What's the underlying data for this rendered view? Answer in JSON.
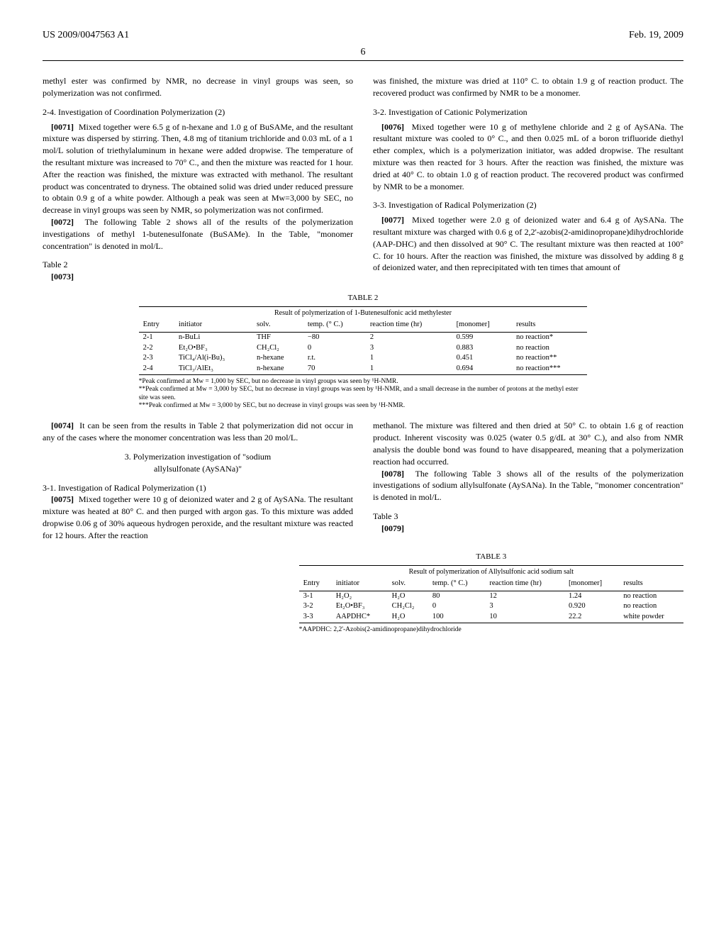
{
  "header": {
    "patent_no": "US 2009/0047563 A1",
    "date": "Feb. 19, 2009",
    "page": "6"
  },
  "col1": {
    "intro": "methyl ester was confirmed by NMR, no decrease in vinyl groups was seen, so polymerization was not confirmed.",
    "s24_head": "2-4. Investigation of Coordination Polymerization (2)",
    "p0071_num": "[0071]",
    "p0071": "Mixed together were 6.5 g of n-hexane and 1.0 g of BuSAMe, and the resultant mixture was dispersed by stirring. Then, 4.8 mg of titanium trichloride and 0.03 mL of a 1 mol/L solution of triethylaluminum in hexane were added dropwise. The temperature of the resultant mixture was increased to 70° C., and then the mixture was reacted for 1 hour. After the reaction was finished, the mixture was extracted with methanol. The resultant product was concentrated to dryness. The obtained solid was dried under reduced pressure to obtain 0.9 g of a white powder. Although a peak was seen at Mw=3,000 by SEC, no decrease in vinyl groups was seen by NMR, so polymerization was not confirmed.",
    "p0072_num": "[0072]",
    "p0072": "The following Table 2 shows all of the results of the polymerization investigations of methyl 1-butenesulfonate (BuSAMe). In the Table, \"monomer concentration\" is denoted in mol/L.",
    "t2_label": "Table 2",
    "p0073_num": "[0073]",
    "p0074_num": "[0074]",
    "p0074": "It can be seen from the results in Table 2 that polymerization did not occur in any of the cases where the monomer concentration was less than 20 mol/L.",
    "s3_head1": "3. Polymerization investigation of \"sodium",
    "s3_head2": "allylsulfonate (AySANa)\"",
    "s31_head": "3-1. Investigation of Radical Polymerization (1)",
    "p0075_num": "[0075]",
    "p0075": "Mixed together were 10 g of deionized water and 2 g of AySANa. The resultant mixture was heated at 80° C. and then purged with argon gas. To this mixture was added dropwise 0.06 g of 30% aqueous hydrogen peroxide, and the resultant mixture was reacted for 12 hours. After the reaction"
  },
  "col2": {
    "intro": "was finished, the mixture was dried at 110° C. to obtain 1.9 g of reaction product. The recovered product was confirmed by NMR to be a monomer.",
    "s32_head": "3-2. Investigation of Cationic Polymerization",
    "p0076_num": "[0076]",
    "p0076": "Mixed together were 10 g of methylene chloride and 2 g of AySANa. The resultant mixture was cooled to 0° C., and then 0.025 mL of a boron trifluoride diethyl ether complex, which is a polymerization initiator, was added dropwise. The resultant mixture was then reacted for 3 hours. After the reaction was finished, the mixture was dried at 40° C. to obtain 1.0 g of reaction product. The recovered product was confirmed by NMR to be a monomer.",
    "s33_head": "3-3. Investigation of Radical Polymerization (2)",
    "p0077_num": "[0077]",
    "p0077": "Mixed together were 2.0 g of deionized water and 6.4 g of AySANa. The resultant mixture was charged with 0.6 g of 2,2'-azobis(2-amidinopropane)dihydrochloride (AAP-DHC) and then dissolved at 90° C. The resultant mixture was then reacted at 100° C. for 10 hours. After the reaction was finished, the mixture was dissolved by adding 8 g of deionized water, and then reprecipitated with ten times that amount of",
    "p_cont": "methanol. The mixture was filtered and then dried at 50° C. to obtain 1.6 g of reaction product. Inherent viscosity was 0.025 (water 0.5 g/dL at 30° C.), and also from NMR analysis the double bond was found to have disappeared, meaning that a polymerization reaction had occurred.",
    "p0078_num": "[0078]",
    "p0078": "The following Table 3 shows all of the results of the polymerization investigations of sodium allylsulfonate (AySANa). In the Table, \"monomer concentration\" is denoted in mol/L.",
    "t3_label": "Table 3",
    "p0079_num": "[0079]"
  },
  "table2": {
    "caption": "TABLE 2",
    "subtitle": "Result of polymerization of 1-Butenesulfonic acid methylester",
    "headers": [
      "Entry",
      "initiator",
      "solv.",
      "temp. (° C.)",
      "reaction time (hr)",
      "[monomer]",
      "results"
    ],
    "rows": [
      [
        "2-1",
        "n-BuLi",
        "THF",
        "−80",
        "2",
        "0.599",
        "no reaction*"
      ],
      [
        "2-2",
        "Et₂O•BF₃",
        "CH₂Cl₂",
        "0",
        "3",
        "0.883",
        "no reaction"
      ],
      [
        "2-3",
        "TiCl₄/Al(i-Bu)₃",
        "n-hexane",
        "r.t.",
        "1",
        "0.451",
        "no reaction**"
      ],
      [
        "2-4",
        "TiCl₃/AlEt₃",
        "n-hexane",
        "70",
        "1",
        "0.694",
        "no reaction***"
      ]
    ],
    "fn1": "*Peak confirmed at Mw = 1,000 by SEC, but no decrease in vinyl groups was seen by ¹H-NMR.",
    "fn2": "**Peak confirmed at Mw = 3,000 by SEC, but no decrease in vinyl groups was seen by ¹H-NMR, and a small decrease in the number of protons at the methyl ester site was seen.",
    "fn3": "***Peak confirmed at Mw = 3,000 by SEC, but no decrease in vinyl groups was seen by ¹H-NMR."
  },
  "table3": {
    "caption": "TABLE 3",
    "subtitle": "Result of polymerization of Allylsulfonic acid sodium salt",
    "headers": [
      "Entry",
      "initiator",
      "solv.",
      "temp. (° C.)",
      "reaction time (hr)",
      "[monomer]",
      "results"
    ],
    "rows": [
      [
        "3-1",
        "H₂O₂",
        "H₂O",
        "80",
        "12",
        "1.24",
        "no reaction"
      ],
      [
        "3-2",
        "Et₂O•BF₃",
        "CH₂Cl₂",
        "0",
        "3",
        "0.920",
        "no reaction"
      ],
      [
        "3-3",
        "AAPDHC*",
        "H₂O",
        "100",
        "10",
        "22.2",
        "white powder"
      ]
    ],
    "fn1": "*AAPDHC: 2,2'-Azobis(2-amidinopropane)dihydrochloride"
  }
}
